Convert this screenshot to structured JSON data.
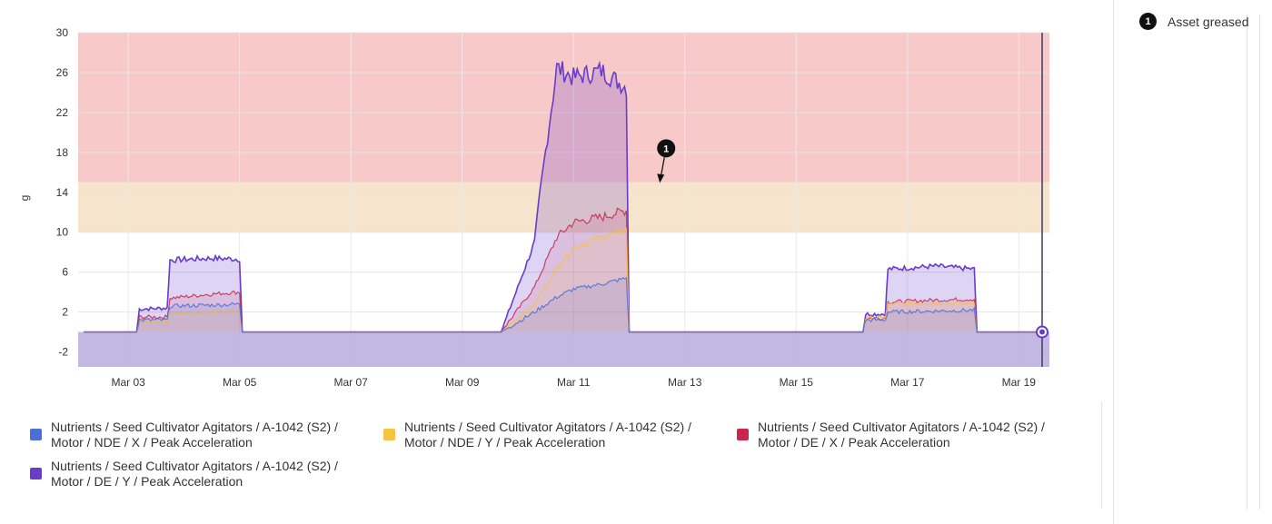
{
  "chart_data": {
    "type": "area",
    "ylabel": "g",
    "xlabel": "",
    "ylim": [
      -3.5,
      30
    ],
    "y_ticks": [
      "30",
      "26",
      "22",
      "18",
      "14",
      "10",
      "6",
      "2",
      "-2"
    ],
    "x_ticks": [
      "Mar 03",
      "Mar 05",
      "Mar 07",
      "Mar 09",
      "Mar 11",
      "Mar 13",
      "Mar 15",
      "Mar 17",
      "Mar 19"
    ],
    "threshold_bands": [
      {
        "from": 15,
        "to": 30,
        "color": "#f7c6c6"
      },
      {
        "from": 10,
        "to": 15,
        "color": "#f6e3c9"
      }
    ],
    "series_points_x": [
      "Mar 02",
      "Mar 03",
      "Mar 03.2",
      "Mar 03.8",
      "Mar 04",
      "Mar 04.5",
      "Mar 05",
      "Mar 06",
      "Mar 08",
      "Mar 09.5",
      "Mar 10",
      "Mar 10.5",
      "Mar 11",
      "Mar 11.5",
      "Mar 12",
      "Mar 13",
      "Mar 15",
      "Mar 16",
      "Mar 16.5",
      "Mar 17",
      "Mar 17.5",
      "Mar 18",
      "Mar 19"
    ],
    "series": [
      {
        "name": "Nutrients / Seed Cultivator Agitators / A-1042 (S2) / Motor / NDE / X / Peak Acceleration",
        "color": "#4b6fd8",
        "x": [
          2.2,
          3.15,
          3.2,
          3.7,
          3.75,
          4.5,
          5.0,
          5.05,
          9.1,
          9.7,
          10.3,
          10.7,
          11.0,
          11.5,
          11.95,
          12.0,
          16.2,
          16.25,
          16.6,
          16.65,
          17.5,
          18.2,
          18.25,
          19.4
        ],
        "y": [
          0,
          0,
          1.2,
          1.2,
          2.6,
          2.7,
          2.8,
          0,
          0,
          0,
          2.0,
          3.5,
          4.3,
          4.8,
          5.4,
          0,
          0,
          1.2,
          1.2,
          2.0,
          2.1,
          2.2,
          0,
          0
        ]
      },
      {
        "name": "Nutrients / Seed Cultivator Agitators / A-1042 (S2) / Motor / NDE / Y / Peak Acceleration",
        "color": "#f5c242",
        "x": [
          2.2,
          3.15,
          3.2,
          3.7,
          3.75,
          4.5,
          5.0,
          5.05,
          9.1,
          9.7,
          10.3,
          10.7,
          11.0,
          11.5,
          11.95,
          12.0,
          16.2,
          16.25,
          16.6,
          16.65,
          17.5,
          18.2,
          18.25,
          19.4
        ],
        "y": [
          0,
          0,
          1.0,
          1.0,
          1.9,
          2.0,
          2.1,
          0,
          0,
          0,
          2.8,
          6.5,
          8.5,
          9.5,
          10.2,
          0,
          0,
          1.4,
          1.4,
          2.8,
          2.9,
          2.9,
          0,
          0
        ]
      },
      {
        "name": "Nutrients / Seed Cultivator Agitators / A-1042 (S2) / Motor / DE / X / Peak Acceleration",
        "color": "#c8284e",
        "x": [
          2.2,
          3.15,
          3.2,
          3.7,
          3.75,
          4.5,
          5.0,
          5.05,
          9.1,
          9.7,
          10.3,
          10.7,
          11.0,
          11.5,
          11.95,
          12.0,
          16.2,
          16.25,
          16.6,
          16.65,
          17.5,
          18.2,
          18.25,
          19.4
        ],
        "y": [
          0,
          0,
          1.5,
          1.5,
          3.4,
          3.8,
          4.0,
          0,
          0,
          0,
          4.5,
          9.5,
          11.0,
          11.5,
          12.2,
          0,
          0,
          1.4,
          1.4,
          3.0,
          3.2,
          3.3,
          0,
          0
        ]
      },
      {
        "name": "Nutrients / Seed Cultivator Agitators / A-1042 (S2) / Motor / DE / Y / Peak Acceleration",
        "color": "#6a3cc8",
        "x": [
          2.2,
          3.15,
          3.2,
          3.7,
          3.75,
          4.5,
          5.0,
          5.05,
          9.1,
          9.7,
          10.3,
          10.4,
          10.7,
          11.0,
          11.5,
          11.95,
          12.0,
          16.2,
          16.25,
          16.6,
          16.65,
          17.5,
          18.2,
          18.25,
          19.4
        ],
        "y": [
          0,
          0,
          2.3,
          2.4,
          7.2,
          7.4,
          7.3,
          0,
          0,
          0,
          9.0,
          14.0,
          26.5,
          25.5,
          26.2,
          24.5,
          0,
          0,
          1.8,
          1.8,
          6.3,
          6.6,
          6.3,
          0,
          0
        ]
      }
    ]
  },
  "annotation": {
    "number": "1",
    "label": "Asset greased",
    "date": "Mar 12.6",
    "value": 17.5
  },
  "legend": [
    {
      "label": "Nutrients / Seed Cultivator Agitators / A-1042 (S2) / Motor / NDE / X / Peak Acceleration",
      "color": "#4b6fd8"
    },
    {
      "label": "Nutrients / Seed Cultivator Agitators / A-1042 (S2) / Motor / NDE / Y / Peak Acceleration",
      "color": "#f5c242"
    },
    {
      "label": "Nutrients / Seed Cultivator Agitators / A-1042 (S2) / Motor / DE / X / Peak Acceleration",
      "color": "#c8284e"
    },
    {
      "label": "Nutrients / Seed Cultivator Agitators / A-1042 (S2) / Motor / DE / Y / Peak Acceleration",
      "color": "#6a3cc8"
    }
  ]
}
